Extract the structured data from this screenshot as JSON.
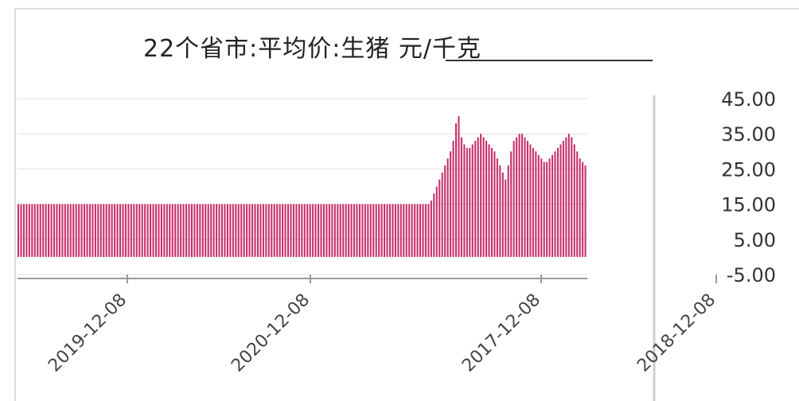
{
  "chart_data": {
    "type": "bar",
    "title": "22个省市:平均价:生猪 元/千克",
    "yticks": [
      "45.00",
      "35.00",
      "25.00",
      "15.00",
      "5.00",
      "-5.00"
    ],
    "ylim": [
      -5,
      45
    ],
    "xticks": [
      "2017-12-08",
      "2018-12-08",
      "2019-12-08",
      "2020-12-08"
    ],
    "series": [
      {
        "color": "#c2185b",
        "values": [
          15,
          15,
          15,
          15,
          15,
          15,
          15,
          15,
          15,
          15,
          15,
          15,
          15,
          15,
          15,
          15,
          15,
          15,
          15,
          15,
          15,
          15,
          15,
          15,
          15,
          15,
          15,
          15,
          15,
          15,
          15,
          15,
          15,
          15,
          15,
          15,
          15,
          15,
          15,
          15,
          15,
          15,
          15,
          15,
          15,
          15,
          15,
          15,
          15,
          15,
          15,
          15,
          15,
          15,
          15,
          15,
          15,
          15,
          15,
          15,
          15,
          15,
          15,
          15,
          15,
          15,
          15,
          15,
          15,
          15,
          15,
          15,
          15,
          15,
          15,
          15,
          15,
          15,
          15,
          15,
          15,
          15,
          15,
          15,
          15,
          15,
          15,
          15,
          15,
          15,
          15,
          15,
          15,
          15,
          15,
          15,
          15,
          15,
          15,
          15,
          15,
          15,
          15,
          15,
          15,
          15,
          15,
          15,
          15,
          15,
          15,
          15,
          15,
          15,
          15,
          15,
          15,
          15,
          15,
          15,
          15,
          15,
          15,
          15,
          15,
          15,
          15,
          15,
          15,
          15,
          15,
          15,
          15,
          15,
          15,
          15,
          15,
          15,
          15,
          15,
          15,
          15,
          15,
          15,
          15,
          15,
          15,
          15,
          15,
          15,
          16,
          18,
          20,
          22,
          24,
          26,
          28,
          30,
          33,
          38,
          40,
          34,
          32,
          31,
          31,
          32,
          33,
          34,
          35,
          34,
          33,
          32,
          31,
          30,
          28,
          26,
          24,
          22,
          26,
          30,
          33,
          34,
          35,
          35,
          34,
          33,
          32,
          31,
          30,
          29,
          28,
          27,
          27,
          28,
          29,
          30,
          31,
          32,
          33,
          34,
          35,
          34,
          32,
          30,
          28,
          27,
          26
        ]
      }
    ]
  }
}
